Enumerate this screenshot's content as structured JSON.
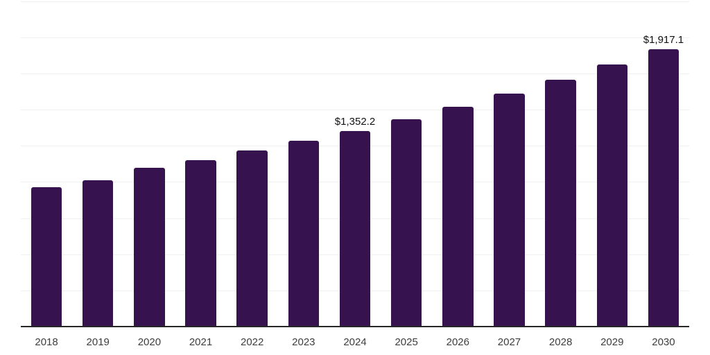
{
  "chart_data": {
    "type": "bar",
    "title": "",
    "xlabel": "",
    "ylabel": "",
    "categories": [
      "2018",
      "2019",
      "2020",
      "2021",
      "2022",
      "2023",
      "2024",
      "2025",
      "2026",
      "2027",
      "2028",
      "2029",
      "2030"
    ],
    "values": [
      963.9,
      1011.4,
      1099.6,
      1150.8,
      1217.9,
      1284.9,
      1352.2,
      1433.3,
      1519.3,
      1610.9,
      1708.0,
      1812.0,
      1917.1
    ],
    "point_labels": {
      "2024": "$1,352.2",
      "2030": "$1,917.1"
    },
    "ylim": [
      0,
      2250
    ],
    "grid_step": 250,
    "grid": true,
    "legend_position": "none",
    "colors": {
      "bar": "#36124e",
      "grid": "#f0f0f0",
      "axis": "#262626",
      "tick_text": "#3d3d3d",
      "label_text": "#111111",
      "background": "#ffffff"
    }
  }
}
